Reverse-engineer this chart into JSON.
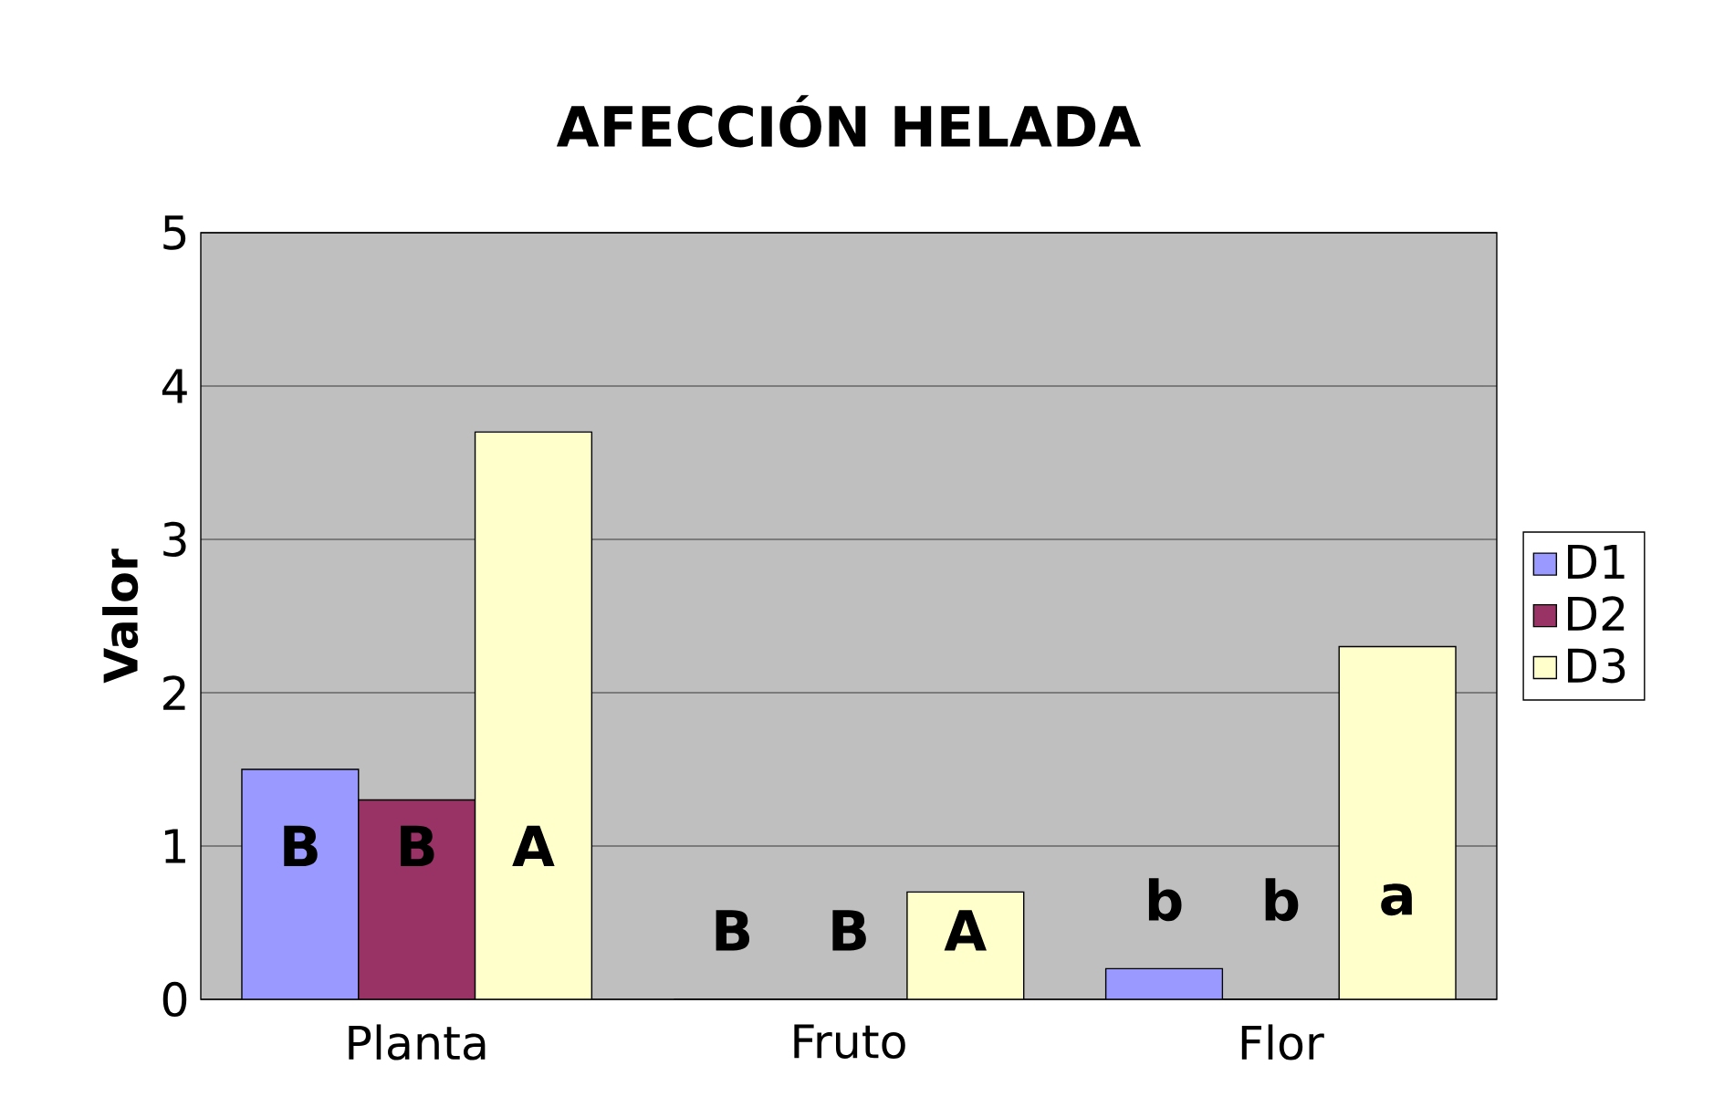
{
  "chart_data": {
    "type": "bar",
    "title": "AFECCIÓN HELADA",
    "ylabel": "Valor",
    "categories": [
      "Planta",
      "Fruto",
      "Flor"
    ],
    "series": [
      {
        "name": "D1",
        "color": "#9999ff",
        "values": [
          1.5,
          0,
          0.2
        ]
      },
      {
        "name": "D2",
        "color": "#993366",
        "values": [
          1.3,
          0,
          0
        ]
      },
      {
        "name": "D3",
        "color": "#ffffcc",
        "values": [
          3.7,
          0.7,
          2.3
        ]
      }
    ],
    "ylim": [
      0,
      5
    ],
    "yticks": [
      0,
      1,
      2,
      3,
      4,
      5
    ],
    "grid": "y",
    "legend": "right",
    "annotations": [
      "B",
      "B",
      "A",
      "B",
      "B",
      "A",
      "b",
      "b",
      "a"
    ]
  }
}
